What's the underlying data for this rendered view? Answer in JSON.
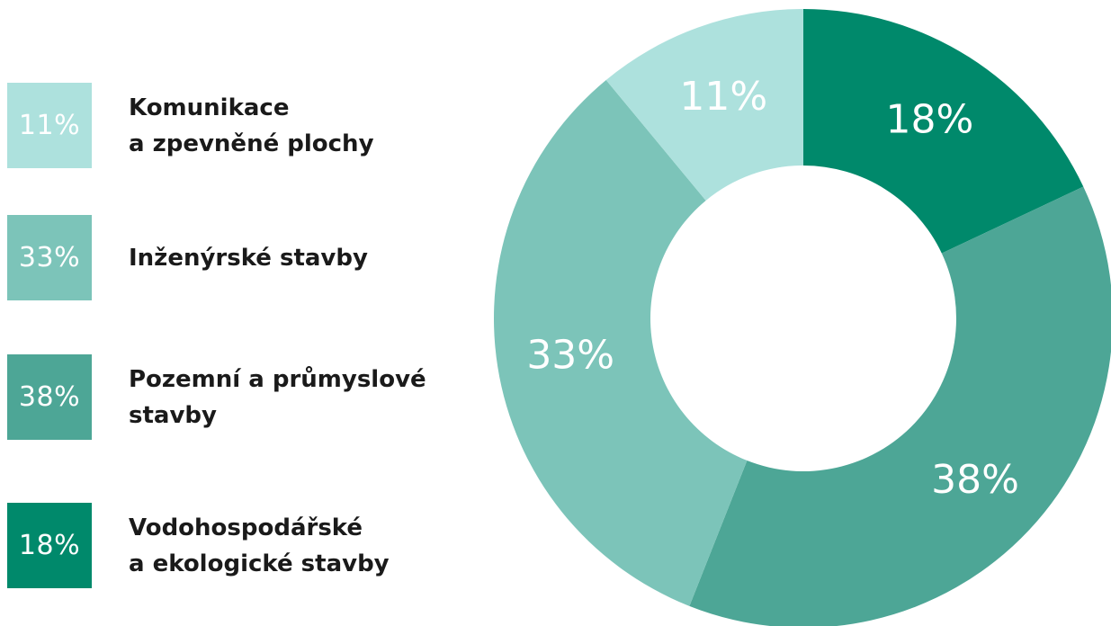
{
  "chart_data": {
    "type": "pie",
    "donut": true,
    "legend_position": "left",
    "slices": [
      {
        "label": "Vodohospodářské a ekologické stavby",
        "label_lines": [
          "Vodohospodářské",
          "a ekologické stavby"
        ],
        "value": 18,
        "display": "18%",
        "color": "#00896b"
      },
      {
        "label": "Pozemní a průmyslové stavby",
        "label_lines": [
          "Pozemní a průmyslové",
          "stavby"
        ],
        "value": 38,
        "display": "38%",
        "color": "#4da696"
      },
      {
        "label": "Inženýrské stavby",
        "label_lines": [
          "Inženýrské stavby"
        ],
        "value": 33,
        "display": "33%",
        "color": "#7cc4b9"
      },
      {
        "label": "Komunikace a zpevněné plochy",
        "label_lines": [
          "Komunikace",
          "a zpevněné plochy"
        ],
        "value": 11,
        "display": "11%",
        "color": "#ade1dd"
      }
    ]
  }
}
